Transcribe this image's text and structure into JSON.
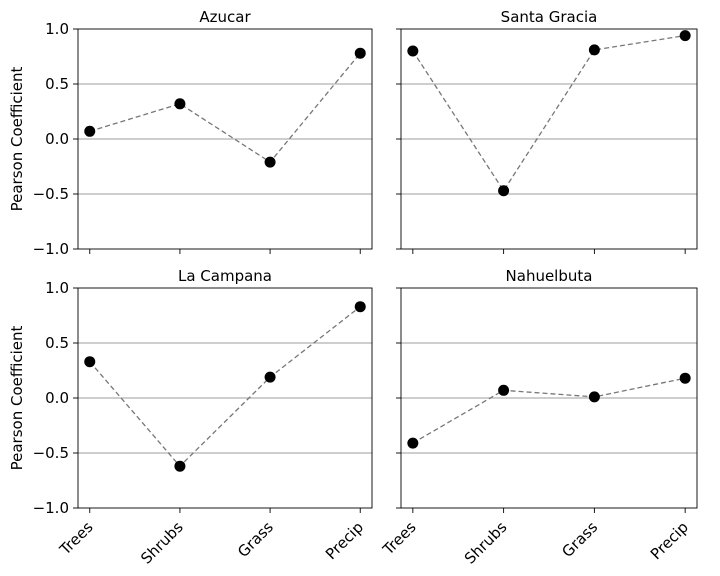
{
  "chart_data": {
    "type": "line",
    "categories": [
      "Trees",
      "Shrubs",
      "Grass",
      "Precip"
    ],
    "ylabel": "Pearson Coefficient",
    "ylim": [
      -1.0,
      1.0
    ],
    "yticks": [
      "1.0",
      "0.5",
      "0.0",
      "−0.5",
      "−1.0"
    ],
    "ytick_values": [
      1.0,
      0.5,
      0.0,
      -0.5,
      -1.0
    ],
    "grid": "horizontal",
    "line_color": "#777777",
    "marker_color": "#000000",
    "grid_color": "#b0b0b0",
    "panels": [
      {
        "title": "Azucar",
        "values": [
          0.07,
          0.32,
          -0.21,
          0.78
        ]
      },
      {
        "title": "Santa Gracia",
        "values": [
          0.8,
          -0.47,
          0.81,
          0.94
        ]
      },
      {
        "title": "La Campana",
        "values": [
          0.33,
          -0.62,
          0.19,
          0.83
        ]
      },
      {
        "title": "Nahuelbuta",
        "values": [
          -0.41,
          0.07,
          0.01,
          0.18
        ]
      }
    ]
  }
}
